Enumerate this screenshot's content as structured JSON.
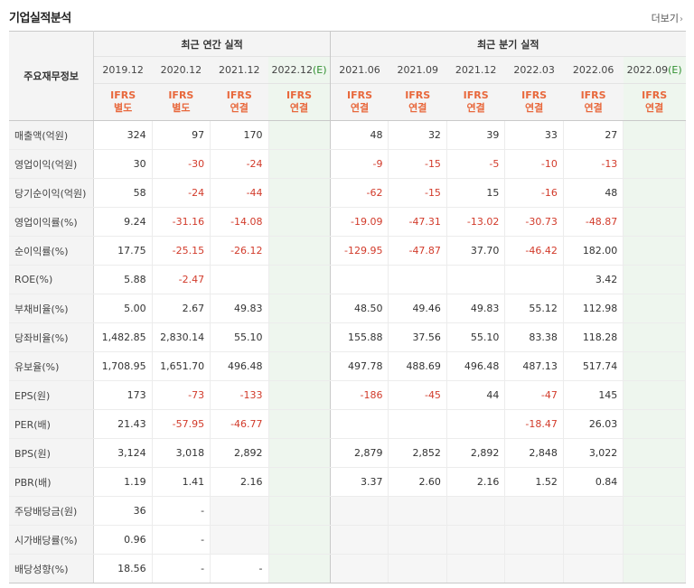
{
  "page": {
    "title": "기업실적분석",
    "more_label": "더보기",
    "more_arrow": "›"
  },
  "header": {
    "corner_label": "주요재무정보",
    "annual_label": "최근 연간 실적",
    "quarter_label": "최근 분기 실적",
    "periods": [
      "2019.12",
      "2020.12",
      "2021.12",
      "2022.12",
      "2021.06",
      "2021.09",
      "2021.12",
      "2022.03",
      "2022.06",
      "2022.09"
    ],
    "estimate_mark": "(E)",
    "ifrs_top": "IFRS",
    "ifrs_types": [
      "별도",
      "별도",
      "연결",
      "연결",
      "연결",
      "연결",
      "연결",
      "연결",
      "연결",
      "연결"
    ]
  },
  "rows": [
    {
      "label": "매출액(억원)",
      "values": [
        "324",
        "97",
        "170",
        "",
        "48",
        "32",
        "39",
        "33",
        "27",
        ""
      ]
    },
    {
      "label": "영업이익(억원)",
      "values": [
        "30",
        "-30",
        "-24",
        "",
        "-9",
        "-15",
        "-5",
        "-10",
        "-13",
        ""
      ]
    },
    {
      "label": "당기순이익(억원)",
      "values": [
        "58",
        "-24",
        "-44",
        "",
        "-62",
        "-15",
        "15",
        "-16",
        "48",
        ""
      ]
    },
    {
      "label": "영업이익률(%)",
      "values": [
        "9.24",
        "-31.16",
        "-14.08",
        "",
        "-19.09",
        "-47.31",
        "-13.02",
        "-30.73",
        "-48.87",
        ""
      ]
    },
    {
      "label": "순이익률(%)",
      "values": [
        "17.75",
        "-25.15",
        "-26.12",
        "",
        "-129.95",
        "-47.87",
        "37.70",
        "-46.42",
        "182.00",
        ""
      ]
    },
    {
      "label": "ROE(%)",
      "values": [
        "5.88",
        "-2.47",
        "",
        "",
        "",
        "",
        "",
        "",
        "3.42",
        ""
      ]
    },
    {
      "label": "부채비율(%)",
      "values": [
        "5.00",
        "2.67",
        "49.83",
        "",
        "48.50",
        "49.46",
        "49.83",
        "55.12",
        "112.98",
        ""
      ]
    },
    {
      "label": "당좌비율(%)",
      "values": [
        "1,482.85",
        "2,830.14",
        "55.10",
        "",
        "155.88",
        "37.56",
        "55.10",
        "83.38",
        "118.28",
        ""
      ]
    },
    {
      "label": "유보율(%)",
      "values": [
        "1,708.95",
        "1,651.70",
        "496.48",
        "",
        "497.78",
        "488.69",
        "496.48",
        "487.13",
        "517.74",
        ""
      ]
    },
    {
      "label": "EPS(원)",
      "values": [
        "173",
        "-73",
        "-133",
        "",
        "-186",
        "-45",
        "44",
        "-47",
        "145",
        ""
      ]
    },
    {
      "label": "PER(배)",
      "values": [
        "21.43",
        "-57.95",
        "-46.77",
        "",
        "",
        "",
        "",
        "-18.47",
        "26.03",
        ""
      ]
    },
    {
      "label": "BPS(원)",
      "values": [
        "3,124",
        "3,018",
        "2,892",
        "",
        "2,879",
        "2,852",
        "2,892",
        "2,848",
        "3,022",
        ""
      ]
    },
    {
      "label": "PBR(배)",
      "values": [
        "1.19",
        "1.41",
        "2.16",
        "",
        "3.37",
        "2.60",
        "2.16",
        "1.52",
        "0.84",
        ""
      ]
    },
    {
      "label": "주당배당금(원)",
      "values": [
        "36",
        "-",
        "",
        "",
        "",
        "",
        "",
        "",
        "",
        ""
      ]
    },
    {
      "label": "시가배당률(%)",
      "values": [
        "0.96",
        "-",
        "",
        "",
        "",
        "",
        "",
        "",
        "",
        ""
      ]
    },
    {
      "label": "배당성향(%)",
      "values": [
        "18.56",
        "-",
        "-",
        "",
        "",
        "",
        "",
        "",
        "",
        ""
      ]
    }
  ],
  "colors": {
    "negative": "#d23b2b",
    "ifrs": "#e8683c",
    "estimate_bg": "#eef6ee",
    "estimate_mark": "#2f8f2f"
  }
}
